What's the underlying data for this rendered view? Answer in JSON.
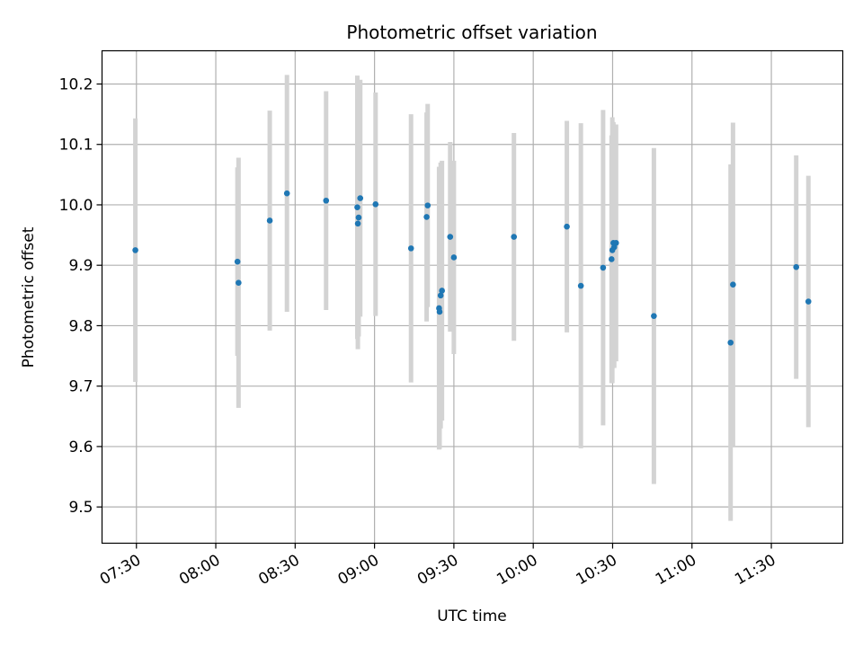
{
  "chart_data": {
    "type": "scatter",
    "title": "Photometric offset variation",
    "xlabel": "UTC time",
    "ylabel": "Photometric offset",
    "grid": true,
    "x_axis": {
      "kind": "time",
      "range": [
        "07:17",
        "11:57"
      ],
      "ticks": [
        "07:30",
        "08:00",
        "08:30",
        "09:00",
        "09:30",
        "10:00",
        "10:30",
        "11:00",
        "11:30"
      ]
    },
    "y_axis": {
      "range": [
        9.44,
        10.255
      ],
      "ticks": [
        9.5,
        9.6,
        9.7,
        9.8,
        9.9,
        10.0,
        10.1,
        10.2
      ],
      "tick_labels": [
        "9.5",
        "9.6",
        "9.7",
        "9.8",
        "9.9",
        "10.0",
        "10.1",
        "10.2"
      ]
    },
    "colors": {
      "point": "#1f77b4",
      "errorbar": "#d3d3d3",
      "grid": "#b0b0b0"
    },
    "points": [
      {
        "t": "07:29.6",
        "y": 9.925,
        "err": 0.218
      },
      {
        "t": "08:08.2",
        "y": 9.906,
        "err": 0.156
      },
      {
        "t": "08:08.6",
        "y": 9.871,
        "err": 0.207
      },
      {
        "t": "08:20.4",
        "y": 9.974,
        "err": 0.182
      },
      {
        "t": "08:26.9",
        "y": 10.019,
        "err": 0.196
      },
      {
        "t": "08:41.7",
        "y": 10.007,
        "err": 0.181
      },
      {
        "t": "08:53.5",
        "y": 9.996,
        "err": 0.218
      },
      {
        "t": "08:53.7",
        "y": 9.969,
        "err": 0.208
      },
      {
        "t": "08:54.0",
        "y": 9.979,
        "err": 0.197
      },
      {
        "t": "08:54.6",
        "y": 10.011,
        "err": 0.196
      },
      {
        "t": "09:00.4",
        "y": 10.001,
        "err": 0.185
      },
      {
        "t": "09:13.8",
        "y": 9.928,
        "err": 0.222
      },
      {
        "t": "09:19.7",
        "y": 9.98,
        "err": 0.173
      },
      {
        "t": "09:20.1",
        "y": 9.999,
        "err": 0.168
      },
      {
        "t": "09:24.4",
        "y": 9.829,
        "err": 0.234
      },
      {
        "t": "09:24.6",
        "y": 9.823,
        "err": 0.227
      },
      {
        "t": "09:25.0",
        "y": 9.85,
        "err": 0.22
      },
      {
        "t": "09:25.5",
        "y": 9.858,
        "err": 0.215
      },
      {
        "t": "09:28.6",
        "y": 9.947,
        "err": 0.157
      },
      {
        "t": "09:30.0",
        "y": 9.913,
        "err": 0.16
      },
      {
        "t": "09:52.7",
        "y": 9.947,
        "err": 0.172
      },
      {
        "t": "10:12.7",
        "y": 9.964,
        "err": 0.175
      },
      {
        "t": "10:18.0",
        "y": 9.866,
        "err": 0.269
      },
      {
        "t": "10:26.4",
        "y": 9.896,
        "err": 0.261
      },
      {
        "t": "10:29.6",
        "y": 9.91,
        "err": 0.205
      },
      {
        "t": "10:29.9",
        "y": 9.925,
        "err": 0.22
      },
      {
        "t": "10:30.3",
        "y": 9.937,
        "err": 0.2
      },
      {
        "t": "10:30.6",
        "y": 9.93,
        "err": 0.2
      },
      {
        "t": "10:31.3",
        "y": 9.937,
        "err": 0.196
      },
      {
        "t": "10:45.6",
        "y": 9.816,
        "err": 0.278
      },
      {
        "t": "11:14.6",
        "y": 9.772,
        "err": 0.295
      },
      {
        "t": "11:15.5",
        "y": 9.868,
        "err": 0.268
      },
      {
        "t": "11:39.4",
        "y": 9.897,
        "err": 0.185
      },
      {
        "t": "11:44.0",
        "y": 9.84,
        "err": 0.208
      }
    ]
  }
}
